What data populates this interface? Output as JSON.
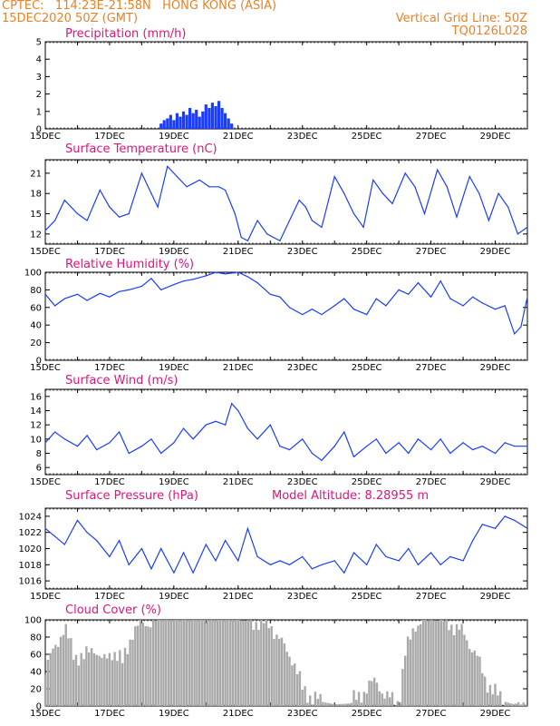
{
  "header": {
    "line1_left": "CPTEC:   114:23E-21:58N   HONG KONG (ASIA)",
    "line2_left": "15DEC2020 50Z (GMT)",
    "line1_right": "Vertical Grid Line: 50Z",
    "line2_right": "TQ0126L028"
  },
  "x_labels": [
    "15DEC",
    "17DEC",
    "19DEC",
    "21DEC",
    "23DEC",
    "25DEC",
    "27DEC",
    "29DEC"
  ],
  "colors": {
    "title": "#e0147a",
    "header": "#e8822a",
    "series": "#1a3cff",
    "cloud": "#a9a9a9"
  },
  "chart_data": [
    {
      "type": "bar",
      "title": "Precipitation (mm/h)",
      "ylim": [
        0,
        5
      ],
      "yticks": [
        0,
        1,
        2,
        3,
        4,
        5
      ],
      "x_start_day": 15,
      "x_end_day": 30,
      "bars": [
        [
          18.6,
          0.3
        ],
        [
          18.7,
          0.5
        ],
        [
          18.8,
          0.6
        ],
        [
          18.9,
          0.8
        ],
        [
          19.0,
          0.5
        ],
        [
          19.1,
          0.9
        ],
        [
          19.2,
          0.7
        ],
        [
          19.3,
          1.0
        ],
        [
          19.4,
          0.8
        ],
        [
          19.5,
          1.2
        ],
        [
          19.6,
          0.9
        ],
        [
          19.7,
          1.1
        ],
        [
          19.8,
          0.7
        ],
        [
          19.9,
          1.0
        ],
        [
          20.0,
          1.4
        ],
        [
          20.1,
          1.2
        ],
        [
          20.2,
          1.5
        ],
        [
          20.3,
          1.3
        ],
        [
          20.4,
          1.6
        ],
        [
          20.5,
          1.2
        ],
        [
          20.6,
          0.9
        ],
        [
          20.7,
          0.6
        ],
        [
          20.8,
          0.3
        ]
      ]
    },
    {
      "type": "line",
      "title": "Surface Temperature (nC)",
      "ylim": [
        10.5,
        23
      ],
      "yticks": [
        12,
        15,
        18,
        21
      ],
      "x_start_day": 15,
      "x_end_day": 30,
      "points": [
        [
          15.0,
          12.5
        ],
        [
          15.3,
          14
        ],
        [
          15.6,
          17
        ],
        [
          16.0,
          15
        ],
        [
          16.3,
          14
        ],
        [
          16.7,
          18.5
        ],
        [
          17.0,
          16
        ],
        [
          17.3,
          14.5
        ],
        [
          17.6,
          15
        ],
        [
          18.0,
          21
        ],
        [
          18.3,
          18
        ],
        [
          18.5,
          16
        ],
        [
          18.8,
          22
        ],
        [
          19.1,
          20.5
        ],
        [
          19.4,
          19
        ],
        [
          19.8,
          20
        ],
        [
          20.1,
          19
        ],
        [
          20.4,
          19
        ],
        [
          20.6,
          18.5
        ],
        [
          20.9,
          15
        ],
        [
          21.1,
          11.5
        ],
        [
          21.3,
          11
        ],
        [
          21.6,
          14
        ],
        [
          21.9,
          12
        ],
        [
          22.1,
          11.5
        ],
        [
          22.3,
          11
        ],
        [
          22.6,
          14
        ],
        [
          22.9,
          17
        ],
        [
          23.1,
          16
        ],
        [
          23.3,
          14
        ],
        [
          23.6,
          13
        ],
        [
          24.0,
          20.5
        ],
        [
          24.3,
          18
        ],
        [
          24.6,
          15
        ],
        [
          24.9,
          13
        ],
        [
          25.2,
          20
        ],
        [
          25.5,
          18
        ],
        [
          25.8,
          16.5
        ],
        [
          26.2,
          21
        ],
        [
          26.5,
          19
        ],
        [
          26.8,
          15
        ],
        [
          27.2,
          21.5
        ],
        [
          27.5,
          19
        ],
        [
          27.8,
          14.5
        ],
        [
          28.2,
          20.5
        ],
        [
          28.5,
          18
        ],
        [
          28.8,
          14
        ],
        [
          29.1,
          18
        ],
        [
          29.4,
          16
        ],
        [
          29.7,
          12
        ],
        [
          30.0,
          13
        ]
      ]
    },
    {
      "type": "line",
      "title": "Relative Humidity (%)",
      "ylim": [
        0,
        100
      ],
      "yticks": [
        0,
        20,
        40,
        60,
        80,
        100
      ],
      "x_start_day": 15,
      "x_end_day": 30,
      "points": [
        [
          15.0,
          75
        ],
        [
          15.3,
          62
        ],
        [
          15.6,
          70
        ],
        [
          16.0,
          75
        ],
        [
          16.3,
          68
        ],
        [
          16.7,
          76
        ],
        [
          17.0,
          72
        ],
        [
          17.3,
          78
        ],
        [
          17.6,
          80
        ],
        [
          18.0,
          84
        ],
        [
          18.3,
          93
        ],
        [
          18.6,
          80
        ],
        [
          19.0,
          86
        ],
        [
          19.3,
          90
        ],
        [
          19.6,
          92
        ],
        [
          20.0,
          96
        ],
        [
          20.3,
          100
        ],
        [
          20.6,
          98
        ],
        [
          21.0,
          100
        ],
        [
          21.3,
          95
        ],
        [
          21.6,
          88
        ],
        [
          22.0,
          75
        ],
        [
          22.3,
          72
        ],
        [
          22.6,
          60
        ],
        [
          23.0,
          52
        ],
        [
          23.3,
          58
        ],
        [
          23.6,
          52
        ],
        [
          24.0,
          62
        ],
        [
          24.3,
          70
        ],
        [
          24.6,
          58
        ],
        [
          25.0,
          52
        ],
        [
          25.3,
          70
        ],
        [
          25.6,
          62
        ],
        [
          26.0,
          80
        ],
        [
          26.3,
          75
        ],
        [
          26.6,
          88
        ],
        [
          27.0,
          72
        ],
        [
          27.3,
          90
        ],
        [
          27.6,
          70
        ],
        [
          28.0,
          62
        ],
        [
          28.3,
          72
        ],
        [
          28.6,
          65
        ],
        [
          29.0,
          58
        ],
        [
          29.3,
          62
        ],
        [
          29.6,
          30
        ],
        [
          29.8,
          38
        ],
        [
          30.0,
          72
        ]
      ]
    },
    {
      "type": "line",
      "title": "Surface Wind (m/s)",
      "ylim": [
        5,
        17
      ],
      "yticks": [
        6,
        8,
        10,
        12,
        14,
        16
      ],
      "x_start_day": 15,
      "x_end_day": 30,
      "points": [
        [
          15.0,
          9.5
        ],
        [
          15.3,
          11
        ],
        [
          15.6,
          10
        ],
        [
          16.0,
          9
        ],
        [
          16.3,
          10.5
        ],
        [
          16.6,
          8.5
        ],
        [
          17.0,
          9.5
        ],
        [
          17.3,
          11
        ],
        [
          17.6,
          8
        ],
        [
          18.0,
          9
        ],
        [
          18.3,
          10
        ],
        [
          18.6,
          8
        ],
        [
          19.0,
          9.5
        ],
        [
          19.3,
          11.5
        ],
        [
          19.6,
          10
        ],
        [
          20.0,
          12
        ],
        [
          20.3,
          12.5
        ],
        [
          20.6,
          12
        ],
        [
          20.8,
          15
        ],
        [
          21.0,
          14
        ],
        [
          21.3,
          11.5
        ],
        [
          21.6,
          10
        ],
        [
          22.0,
          12
        ],
        [
          22.3,
          9
        ],
        [
          22.6,
          8.5
        ],
        [
          23.0,
          10
        ],
        [
          23.3,
          8
        ],
        [
          23.6,
          7
        ],
        [
          24.0,
          9
        ],
        [
          24.3,
          11
        ],
        [
          24.6,
          7.5
        ],
        [
          25.0,
          9
        ],
        [
          25.3,
          10
        ],
        [
          25.6,
          8
        ],
        [
          26.0,
          9.5
        ],
        [
          26.3,
          8
        ],
        [
          26.6,
          10
        ],
        [
          27.0,
          8.5
        ],
        [
          27.3,
          10
        ],
        [
          27.6,
          8
        ],
        [
          28.0,
          9.5
        ],
        [
          28.3,
          8.5
        ],
        [
          28.6,
          9
        ],
        [
          29.0,
          8
        ],
        [
          29.3,
          9.5
        ],
        [
          29.6,
          9
        ],
        [
          30.0,
          9
        ]
      ]
    },
    {
      "type": "line",
      "title": "Surface Pressure (hPa)",
      "annotation": "Model Altitude: 8.28955 m",
      "ylim": [
        1015,
        1025
      ],
      "yticks": [
        1016,
        1018,
        1020,
        1022,
        1024
      ],
      "x_start_day": 15,
      "x_end_day": 30,
      "points": [
        [
          15.0,
          1022.5
        ],
        [
          15.3,
          1021.5
        ],
        [
          15.6,
          1020.5
        ],
        [
          16.0,
          1023.5
        ],
        [
          16.3,
          1022
        ],
        [
          16.6,
          1021
        ],
        [
          17.0,
          1019
        ],
        [
          17.3,
          1021
        ],
        [
          17.6,
          1018
        ],
        [
          18.0,
          1020
        ],
        [
          18.3,
          1017.5
        ],
        [
          18.6,
          1020
        ],
        [
          19.0,
          1017
        ],
        [
          19.3,
          1019.5
        ],
        [
          19.6,
          1017
        ],
        [
          20.0,
          1020.5
        ],
        [
          20.3,
          1018.5
        ],
        [
          20.6,
          1021
        ],
        [
          21.0,
          1018.5
        ],
        [
          21.3,
          1022.5
        ],
        [
          21.6,
          1019
        ],
        [
          22.0,
          1018
        ],
        [
          22.3,
          1018.5
        ],
        [
          22.6,
          1018
        ],
        [
          23.0,
          1019
        ],
        [
          23.3,
          1017.5
        ],
        [
          23.6,
          1018
        ],
        [
          24.0,
          1018.5
        ],
        [
          24.3,
          1017
        ],
        [
          24.6,
          1019.5
        ],
        [
          25.0,
          1018
        ],
        [
          25.3,
          1020.5
        ],
        [
          25.6,
          1019
        ],
        [
          26.0,
          1018.5
        ],
        [
          26.3,
          1020
        ],
        [
          26.6,
          1018
        ],
        [
          27.0,
          1019.5
        ],
        [
          27.3,
          1018
        ],
        [
          27.6,
          1019
        ],
        [
          28.0,
          1018.5
        ],
        [
          28.3,
          1021
        ],
        [
          28.6,
          1023
        ],
        [
          29.0,
          1022.5
        ],
        [
          29.3,
          1024
        ],
        [
          29.6,
          1023.5
        ],
        [
          30.0,
          1022.5
        ]
      ]
    },
    {
      "type": "bar",
      "title": "Cloud Cover (%)",
      "ylim": [
        0,
        100
      ],
      "yticks": [
        0,
        20,
        40,
        60,
        80,
        100
      ],
      "x_start_day": 15,
      "x_end_day": 30,
      "profile": [
        [
          15.0,
          40
        ],
        [
          15.3,
          70
        ],
        [
          15.6,
          90
        ],
        [
          15.9,
          60
        ],
        [
          16.2,
          55
        ],
        [
          16.5,
          70
        ],
        [
          16.8,
          50
        ],
        [
          17.1,
          65
        ],
        [
          17.4,
          50
        ],
        [
          17.7,
          85
        ],
        [
          18.0,
          95
        ],
        [
          18.5,
          100
        ],
        [
          19.5,
          100
        ],
        [
          20.5,
          100
        ],
        [
          21.0,
          100
        ],
        [
          21.5,
          98
        ],
        [
          22.0,
          95
        ],
        [
          22.4,
          70
        ],
        [
          22.7,
          55
        ],
        [
          23.0,
          20
        ],
        [
          23.3,
          10
        ],
        [
          23.6,
          5
        ],
        [
          24.0,
          2
        ],
        [
          24.5,
          3
        ],
        [
          25.0,
          20
        ],
        [
          25.3,
          30
        ],
        [
          25.6,
          10
        ],
        [
          26.0,
          5
        ],
        [
          26.2,
          60
        ],
        [
          26.5,
          95
        ],
        [
          27.0,
          100
        ],
        [
          27.5,
          98
        ],
        [
          28.0,
          85
        ],
        [
          28.4,
          60
        ],
        [
          28.7,
          30
        ],
        [
          29.0,
          15
        ],
        [
          29.3,
          5
        ],
        [
          29.6,
          2
        ],
        [
          30.0,
          10
        ]
      ]
    }
  ]
}
